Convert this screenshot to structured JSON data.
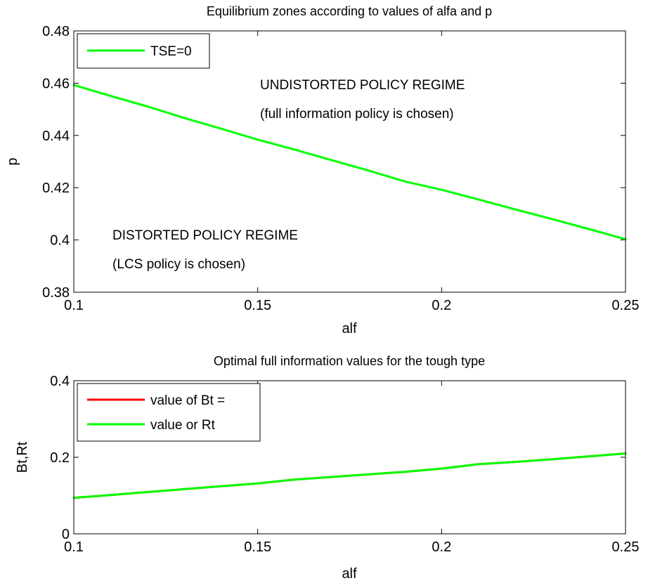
{
  "chart_data": [
    {
      "type": "line",
      "title": "Equilibrium zones according to values of alfa and p",
      "xlabel": "alf",
      "ylabel": "p",
      "xlim": [
        0.1,
        0.25
      ],
      "ylim": [
        0.38,
        0.48
      ],
      "xticks": [
        "0.1",
        "0.15",
        "0.2",
        "0.25"
      ],
      "yticks": [
        "0.38",
        "0.4",
        "0.42",
        "0.44",
        "0.46",
        "0.48"
      ],
      "grid": false,
      "legend_position": "top-left",
      "series": [
        {
          "name": "TSE=0",
          "color": "#00ff00",
          "x": [
            0.1,
            0.11,
            0.12,
            0.13,
            0.14,
            0.15,
            0.16,
            0.17,
            0.18,
            0.19,
            0.2,
            0.21,
            0.22,
            0.23,
            0.24,
            0.25
          ],
          "y": [
            0.4593,
            0.4551,
            0.4511,
            0.4467,
            0.4426,
            0.4384,
            0.4346,
            0.4306,
            0.4266,
            0.4224,
            0.4192,
            0.4155,
            0.4117,
            0.408,
            0.4042,
            0.4003
          ]
        }
      ],
      "annotations": [
        {
          "text": "UNDISTORTED POLICY REGIME",
          "x": 0.1505,
          "y": 0.4601
        },
        {
          "text": "(full information policy is chosen)",
          "x": 0.1505,
          "y": 0.449
        },
        {
          "text": "DISTORTED POLICY REGIME",
          "x": 0.1102,
          "y": 0.4002
        },
        {
          "text": "(LCS policy is chosen)",
          "x": 0.1102,
          "y": 0.389
        }
      ]
    },
    {
      "type": "line",
      "title": "Optimal full information values for the tough type",
      "xlabel": "alf",
      "ylabel": "Bt,Rt",
      "xlim": [
        0.1,
        0.25
      ],
      "ylim": [
        0,
        0.4
      ],
      "xticks": [
        "0.1",
        "0.15",
        "0.2",
        "0.25"
      ],
      "yticks": [
        "0",
        "0.2",
        "0.4"
      ],
      "grid": false,
      "legend_position": "top-left",
      "series": [
        {
          "name": "value of Bt =",
          "color": "#ff0000",
          "x": [
            0.1,
            0.11,
            0.12,
            0.13,
            0.14,
            0.15,
            0.16,
            0.17,
            0.18,
            0.19,
            0.2,
            0.21,
            0.22,
            0.23,
            0.24,
            0.25
          ],
          "y": [
            0.0939,
            0.1015,
            0.1091,
            0.1167,
            0.1243,
            0.1317,
            0.1418,
            0.1485,
            0.1553,
            0.1621,
            0.1705,
            0.1818,
            0.1879,
            0.1947,
            0.2023,
            0.2099
          ]
        },
        {
          "name": "value or Rt",
          "color": "#00ff00",
          "x": [
            0.1,
            0.11,
            0.12,
            0.13,
            0.14,
            0.15,
            0.16,
            0.17,
            0.18,
            0.19,
            0.2,
            0.21,
            0.22,
            0.23,
            0.24,
            0.25
          ],
          "y": [
            0.0939,
            0.1015,
            0.1091,
            0.1167,
            0.1243,
            0.1317,
            0.1418,
            0.1485,
            0.1553,
            0.1621,
            0.1705,
            0.1818,
            0.1879,
            0.1947,
            0.2023,
            0.2099
          ]
        }
      ]
    }
  ]
}
